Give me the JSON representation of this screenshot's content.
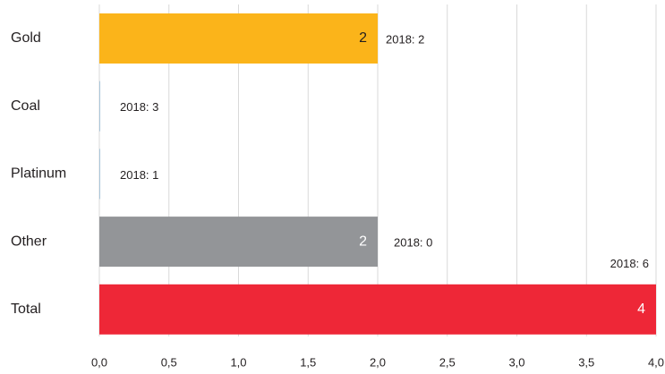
{
  "chart_data": {
    "type": "hbar",
    "categories": [
      "Gold",
      "Coal",
      "Platinum",
      "Other",
      "Total"
    ],
    "values": [
      2,
      0,
      0,
      2,
      4
    ],
    "value_labels": [
      "2",
      null,
      null,
      "2",
      "4"
    ],
    "colors": [
      "#fbb41a",
      "#a9c6da",
      "#a9c6da",
      "#939598",
      "#ee2737"
    ],
    "value_label_colors": [
      "#231f20",
      "#ffffff",
      "#ffffff",
      "#ffffff",
      "#ffffff"
    ],
    "annotations": [
      "2018: 2",
      "2018: 3",
      "2018: 1",
      "2018: 0",
      "2018: 6"
    ],
    "xlim": [
      0,
      4
    ],
    "xticks": [
      {
        "value": 0,
        "label": "0,0"
      },
      {
        "value": 0.5,
        "label": "0,5"
      },
      {
        "value": 1,
        "label": "1,0"
      },
      {
        "value": 1.5,
        "label": "1,5"
      },
      {
        "value": 2,
        "label": "2,0"
      },
      {
        "value": 2.5,
        "label": "2,5"
      },
      {
        "value": 3,
        "label": "3,0"
      },
      {
        "value": 3.5,
        "label": "3,5"
      },
      {
        "value": 4,
        "label": "4,0"
      }
    ],
    "grid": true
  }
}
